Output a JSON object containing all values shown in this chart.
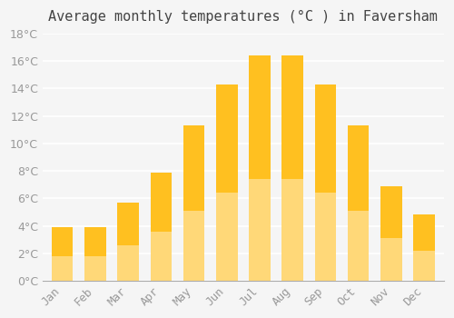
{
  "title": "Average monthly temperatures (°C ) in Faversham",
  "months": [
    "Jan",
    "Feb",
    "Mar",
    "Apr",
    "May",
    "Jun",
    "Jul",
    "Aug",
    "Sep",
    "Oct",
    "Nov",
    "Dec"
  ],
  "values": [
    3.9,
    3.9,
    5.7,
    7.9,
    11.3,
    14.3,
    16.4,
    16.4,
    14.3,
    11.3,
    6.9,
    4.8
  ],
  "bar_color_top": "#FFC020",
  "bar_color_bottom": "#FFD878",
  "background_color": "#F5F5F5",
  "grid_color": "#FFFFFF",
  "text_color": "#999999",
  "ylim": [
    0,
    18
  ],
  "yticks": [
    0,
    2,
    4,
    6,
    8,
    10,
    12,
    14,
    16,
    18
  ],
  "title_fontsize": 11,
  "tick_fontsize": 9
}
